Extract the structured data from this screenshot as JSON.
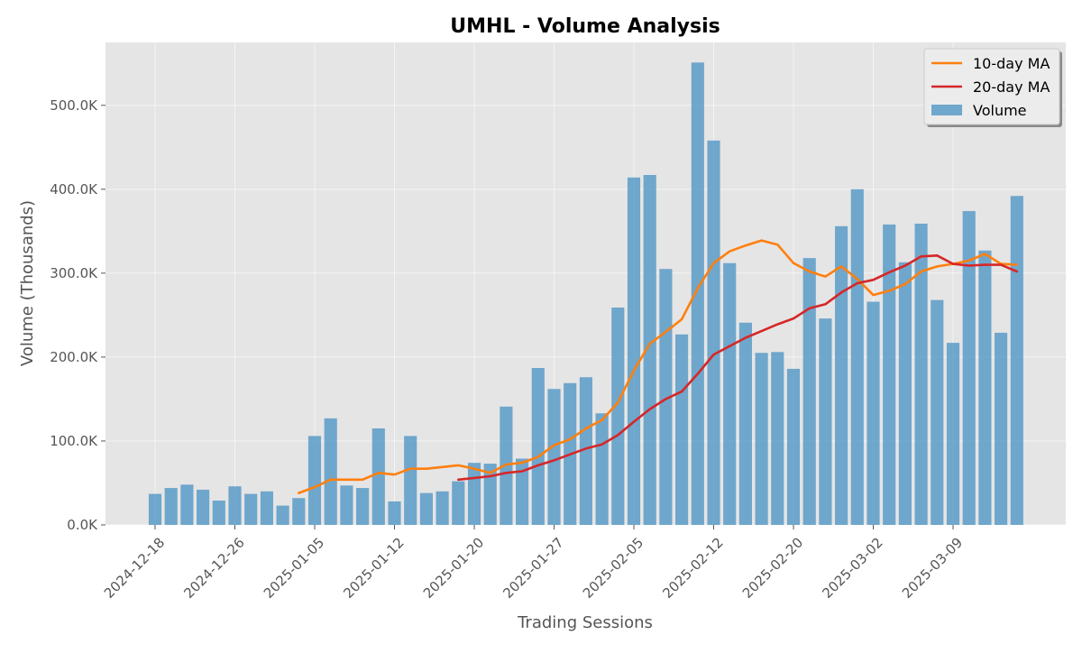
{
  "chart_data": {
    "type": "bar",
    "title": "UMHL - Volume Analysis",
    "xlabel": "Trading Sessions",
    "ylabel": "Volume (Thousands)",
    "ylim": [
      0,
      575
    ],
    "yticks": [
      0,
      100,
      200,
      300,
      400,
      500
    ],
    "ytick_labels": [
      "0.0K",
      "100.0K",
      "200.0K",
      "300.0K",
      "400.0K",
      "500.0K"
    ],
    "xtick_labels": [
      "2024-12-18",
      "2024-12-26",
      "2025-01-05",
      "2025-01-12",
      "2025-01-20",
      "2025-01-27",
      "2025-02-05",
      "2025-02-12",
      "2025-02-20",
      "2025-03-02",
      "2025-03-09"
    ],
    "xtick_indices": [
      0,
      5,
      10,
      15,
      20,
      25,
      30,
      35,
      40,
      45,
      50
    ],
    "grid": true,
    "legend_position": "top-right",
    "series": [
      {
        "name": "Volume",
        "kind": "bar",
        "color": "#5b9bc8",
        "values": [
          37,
          44,
          48,
          42,
          29,
          46,
          37,
          40,
          23,
          32,
          106,
          127,
          47,
          44,
          115,
          28,
          106,
          38,
          40,
          52,
          74,
          73,
          141,
          79,
          187,
          162,
          169,
          176,
          133,
          259,
          414,
          417,
          305,
          227,
          551,
          458,
          312,
          241,
          205,
          206,
          186,
          318,
          246,
          356,
          400,
          266,
          358,
          313,
          359,
          268,
          217,
          374,
          327,
          229,
          392
        ]
      },
      {
        "name": "10-day MA",
        "kind": "line",
        "color": "#ff7f0e",
        "values": [
          null,
          null,
          null,
          null,
          null,
          null,
          null,
          null,
          null,
          38,
          45,
          54,
          54,
          54,
          62,
          60,
          67,
          67,
          69,
          71,
          67,
          62,
          72,
          74,
          81,
          95,
          102,
          115,
          125,
          146,
          184,
          216,
          230,
          245,
          282,
          312,
          326,
          333,
          339,
          334,
          312,
          302,
          296,
          308,
          293,
          274,
          279,
          287,
          302,
          308,
          311,
          315,
          323,
          311,
          310
        ]
      },
      {
        "name": "20-day MA",
        "kind": "line",
        "color": "#d62728",
        "values": [
          null,
          null,
          null,
          null,
          null,
          null,
          null,
          null,
          null,
          null,
          null,
          null,
          null,
          null,
          null,
          null,
          null,
          null,
          null,
          54,
          56,
          58,
          62,
          64,
          71,
          77,
          84,
          91,
          96,
          107,
          123,
          138,
          150,
          159,
          180,
          203,
          213,
          223,
          231,
          239,
          246,
          258,
          263,
          277,
          288,
          292,
          301,
          309,
          320,
          321,
          311,
          309,
          310,
          310,
          302
        ]
      }
    ]
  }
}
